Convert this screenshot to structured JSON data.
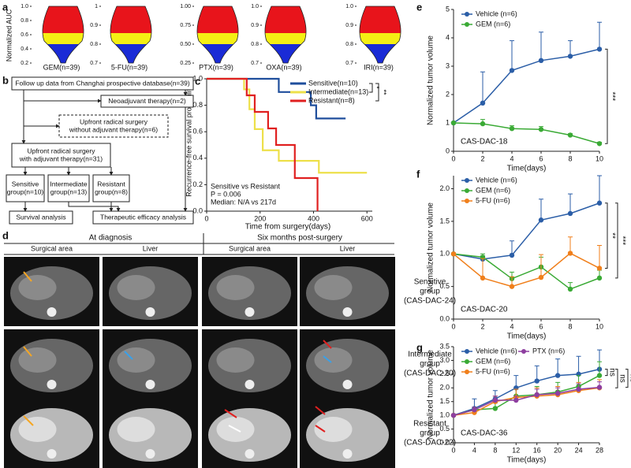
{
  "panel_labels": [
    "a",
    "b",
    "c",
    "d",
    "e",
    "f",
    "g"
  ],
  "chart_data": [
    {
      "type": "violin",
      "category": "GEM(n=39)",
      "ylabel": "Normalized AUC",
      "ylim": [
        0.2,
        1.0
      ],
      "yticks": [
        {
          "value": 1.0,
          "label": "1.0"
        },
        0.8,
        0.6,
        0.4,
        0.2
      ]
    },
    {
      "type": "violin",
      "category": "5-FU(n=39)",
      "ylim": [
        0.7,
        1.0
      ],
      "yticks": [
        1,
        0.9,
        0.8,
        0.7
      ]
    },
    {
      "type": "violin",
      "category": "PTX(n=39)",
      "ylim": [
        0.25,
        1.0
      ],
      "yticks": [
        {
          "value": 1.0,
          "label": "1.00"
        },
        0.75,
        {
          "value": 0.5,
          "label": "0.50"
        },
        0.25
      ]
    },
    {
      "type": "violin",
      "category": "OXA(n=39)",
      "ylim": [
        0.7,
        1.0
      ],
      "yticks": [
        {
          "value": 1.0,
          "label": "1.0"
        },
        0.9,
        0.8,
        0.7
      ]
    },
    {
      "type": "violin",
      "category": "IRI(n=39)",
      "ylim": [
        0.7,
        1.0
      ],
      "yticks": [
        {
          "value": 1.0,
          "label": "1.0"
        },
        0.9,
        0.8,
        0.7
      ]
    },
    {
      "type": "step",
      "xlabel": "Time from surgery(days)",
      "ylabel": "Recurrence-free survival probability",
      "xlim": [
        0,
        620
      ],
      "xticks": [
        0,
        200,
        400,
        600
      ],
      "ylim": [
        0,
        1
      ],
      "yticks": [
        {
          "value": 0,
          "label": "0.0"
        },
        0.2,
        0.4,
        0.6,
        0.8,
        {
          "value": 1,
          "label": "1.0"
        }
      ],
      "annotations": [
        "Sensitive vs Resistant",
        "P = 0.006",
        "Median: N/A vs 217d"
      ],
      "significance": [
        "*",
        "**"
      ],
      "series": [
        {
          "name": "Sensitive(n=10)",
          "color": "#1f4e9c",
          "x": [
            0,
            270,
            270,
            390,
            390,
            410,
            410,
            520
          ],
          "values": [
            1,
            1,
            0.9,
            0.9,
            0.8,
            0.8,
            0.7,
            0.7
          ]
        },
        {
          "name": "Intermediate(n=13)",
          "color": "#ede04a",
          "x": [
            0,
            140,
            140,
            160,
            160,
            180,
            180,
            210,
            210,
            270,
            270,
            420,
            420,
            600
          ],
          "values": [
            1,
            1,
            0.92,
            0.92,
            0.77,
            0.77,
            0.62,
            0.62,
            0.46,
            0.46,
            0.38,
            0.38,
            0.29,
            0.29
          ]
        },
        {
          "name": "Resistant(n=8)",
          "color": "#e02020",
          "x": [
            0,
            150,
            150,
            180,
            180,
            230,
            230,
            260,
            260,
            330,
            330,
            415,
            415
          ],
          "values": [
            1,
            1,
            0.875,
            0.875,
            0.75,
            0.75,
            0.625,
            0.625,
            0.5,
            0.5,
            0.25,
            0.25,
            0
          ]
        }
      ]
    },
    {
      "type": "line",
      "xlabel": "Time(days)",
      "ylabel": "Normalized tumor volume",
      "annotation": "CAS-DAC-18",
      "x": [
        0,
        2,
        4,
        6,
        8,
        10
      ],
      "xlim": [
        0,
        10
      ],
      "xticks": [
        0,
        2,
        4,
        6,
        8,
        10
      ],
      "ylim": [
        0,
        5
      ],
      "yticks": [
        0,
        1,
        2,
        3,
        4,
        5
      ],
      "significance": [
        "***"
      ],
      "series": [
        {
          "name": "Vehicle (n=6)",
          "color": "#2b5ea7",
          "values": [
            1,
            1.7,
            2.85,
            3.2,
            3.35,
            3.6
          ],
          "errors": [
            0,
            1.1,
            1.05,
            1.0,
            0.55,
            0.95
          ]
        },
        {
          "name": "GEM (n=6)",
          "color": "#3aaa35",
          "values": [
            1,
            0.97,
            0.8,
            0.77,
            0.57,
            0.27
          ],
          "errors": [
            0,
            0.15,
            0.1,
            0.1,
            0.05,
            0.05
          ]
        }
      ]
    },
    {
      "type": "line",
      "xlabel": "Time(days)",
      "ylabel": "Normalized tumor volume",
      "annotation": "CAS-DAC-20",
      "x": [
        0,
        2,
        4,
        6,
        8,
        10
      ],
      "xlim": [
        0,
        10
      ],
      "xticks": [
        0,
        2,
        4,
        6,
        8,
        10
      ],
      "ylim": [
        0,
        2.2
      ],
      "yticks": [
        {
          "value": 0,
          "label": "0.0"
        },
        0.5,
        {
          "value": 1,
          "label": "1.0"
        },
        1.5,
        {
          "value": 2,
          "label": "2.0"
        }
      ],
      "significance": [
        "**",
        "***"
      ],
      "series": [
        {
          "name": "Vehicle (n=6)",
          "color": "#2b5ea7",
          "values": [
            1,
            0.92,
            0.98,
            1.52,
            1.62,
            1.78
          ],
          "errors": [
            0,
            0.05,
            0.22,
            0.32,
            0.3,
            0.42
          ]
        },
        {
          "name": "GEM (n=6)",
          "color": "#3aaa35",
          "values": [
            1,
            0.95,
            0.62,
            0.8,
            0.46,
            0.63
          ],
          "errors": [
            0,
            0.05,
            0.1,
            0.15,
            0.1,
            0.12
          ]
        },
        {
          "name": "5-FU (n=6)",
          "color": "#f07f1b",
          "values": [
            1,
            0.63,
            0.5,
            0.64,
            1.01,
            0.78
          ],
          "errors": [
            0,
            0.3,
            0.15,
            0.35,
            0.25,
            0.35
          ]
        }
      ]
    },
    {
      "type": "line",
      "xlabel": "Time(days)",
      "ylabel": "Normalized tumor volume",
      "annotation": "CAS-DAC-36",
      "x": [
        0,
        4,
        8,
        12,
        16,
        20,
        24,
        28
      ],
      "xlim": [
        0,
        28
      ],
      "xticks": [
        0,
        4,
        8,
        12,
        16,
        20,
        24,
        28
      ],
      "ylim": [
        0,
        3.5
      ],
      "yticks": [
        {
          "value": 0,
          "label": "0.0"
        },
        0.5,
        {
          "value": 1,
          "label": "1.0"
        },
        1.5,
        {
          "value": 2,
          "label": "2.0"
        },
        2.5,
        {
          "value": 3,
          "label": "3.0"
        },
        3.5
      ],
      "significance": [
        "ns",
        "ns",
        "ns"
      ],
      "series": [
        {
          "name": "Vehicle (n=6)",
          "color": "#2b5ea7",
          "values": [
            1,
            1.25,
            1.6,
            2.0,
            2.25,
            2.45,
            2.5,
            2.68
          ],
          "errors": [
            0,
            0.35,
            0.3,
            0.45,
            0.55,
            0.6,
            0.65,
            0.7
          ]
        },
        {
          "name": "GEM (n=6)",
          "color": "#3aaa35",
          "values": [
            1,
            1.2,
            1.25,
            1.7,
            1.75,
            1.85,
            2.05,
            2.45
          ],
          "errors": [
            0,
            0.1,
            0.2,
            0.25,
            0.3,
            0.35,
            0.4,
            0.5
          ]
        },
        {
          "name": "5-FU (n=6)",
          "color": "#f07f1b",
          "values": [
            1,
            1.1,
            1.5,
            1.65,
            1.7,
            1.75,
            1.9,
            2.0
          ],
          "errors": [
            0,
            0.1,
            0.2,
            0.3,
            0.3,
            0.3,
            0.3,
            0.3
          ]
        },
        {
          "name": "PTX (n=6)",
          "color": "#8e3fa0",
          "values": [
            1,
            1.2,
            1.55,
            1.55,
            1.75,
            1.8,
            1.95,
            2.02
          ],
          "errors": [
            0,
            0.1,
            0.15,
            0.15,
            0.2,
            0.2,
            0.2,
            0.2
          ]
        }
      ]
    }
  ],
  "flowchart": {
    "boxes": [
      {
        "lines": [
          "Follow up data from Changhai prospective database(n=39)"
        ]
      },
      {
        "lines": [
          "Neoadjuvant therapy(n=2)"
        ]
      },
      {
        "lines": [
          "Upfront radical surgery",
          "without adjuvant therapy(n=6)"
        ]
      },
      {
        "lines": [
          "Upfront radical surgery",
          "with adjuvant therapy(n=31)"
        ]
      },
      {
        "lines": [
          "Sensitive",
          "group(n=10)"
        ]
      },
      {
        "lines": [
          "Intermediate",
          "group(n=13)"
        ]
      },
      {
        "lines": [
          "Resistant",
          "group(n=8)"
        ]
      },
      {
        "lines": [
          "Survival analysis"
        ]
      },
      {
        "lines": [
          "Therapeutic efficacy analysis"
        ]
      }
    ]
  },
  "images": {
    "headers": [
      "At diagnosis",
      "Six months post-surgery"
    ],
    "columns": [
      "Surgical area",
      "Liver",
      "Surgical area",
      "Liver"
    ],
    "rows": [
      {
        "lines": [
          "Sensitive",
          "group",
          "(CAS-DAC-24)"
        ]
      },
      {
        "lines": [
          "Intermediate",
          "group",
          "(CAS-DAC-20)"
        ]
      },
      {
        "lines": [
          "Resistant",
          "group",
          "(CAS-DAC-22)"
        ]
      }
    ]
  }
}
